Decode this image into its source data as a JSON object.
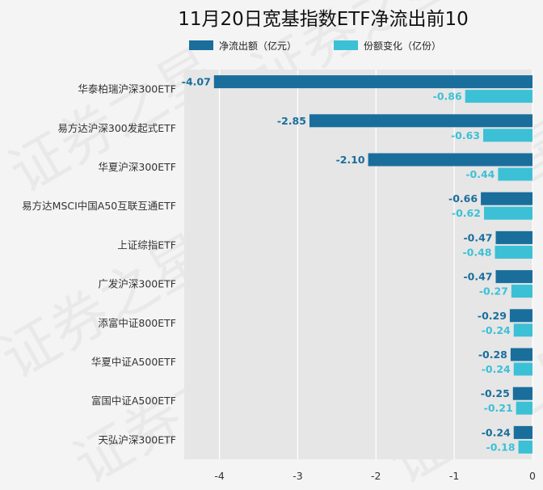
{
  "chart_data": {
    "type": "bar",
    "orientation": "horizontal",
    "title": "11月20日宽基指数ETF净流出前10",
    "categories": [
      "华泰柏瑞沪深300ETF",
      "易方达沪深300发起式ETF",
      "华夏沪深300ETF",
      "易方达MSCI中国A50互联互通ETF",
      "上证综指ETF",
      "广发沪深300ETF",
      "添富中证800ETF",
      "华夏中证A500ETF",
      "富国中证A500ETF",
      "天弘沪深300ETF"
    ],
    "series": [
      {
        "name": "净流出额（亿元）",
        "color": "#1a6e9c",
        "values": [
          -4.07,
          -2.85,
          -2.1,
          -0.66,
          -0.47,
          -0.47,
          -0.29,
          -0.28,
          -0.25,
          -0.24
        ],
        "labels": [
          "-4.07",
          "-2.85",
          "-2.10",
          "-0.66",
          "-0.47",
          "-0.47",
          "-0.29",
          "-0.28",
          "-0.25",
          "-0.24"
        ]
      },
      {
        "name": "份额变化（亿份）",
        "color": "#3cc0d6",
        "values": [
          -0.86,
          -0.63,
          -0.44,
          -0.62,
          -0.48,
          -0.27,
          -0.24,
          -0.24,
          -0.21,
          -0.18
        ],
        "labels": [
          "-0.86",
          "-0.63",
          "-0.44",
          "-0.62",
          "-0.48",
          "-0.27",
          "-0.24",
          "-0.24",
          "-0.21",
          "-0.18"
        ]
      }
    ],
    "x_ticks": [
      "-4",
      "-3",
      "-2",
      "-1",
      "0"
    ],
    "xlim": [
      -4.45,
      0
    ],
    "grid": true,
    "legend_position": "top",
    "watermark": "证券之星"
  }
}
